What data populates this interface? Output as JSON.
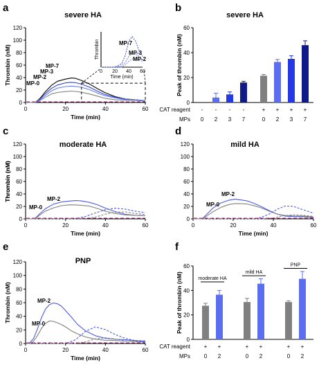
{
  "chart_data": [
    {
      "panel": "a",
      "type": "line",
      "title": "severe HA",
      "xlabel": "Time (min)",
      "ylabel": "Thrombin (nM)",
      "xlim": [
        0,
        60
      ],
      "ylim": [
        0,
        120
      ],
      "xticks": [
        "0",
        "20",
        "40",
        "60"
      ],
      "yticks": [
        "0",
        "20",
        "40",
        "60",
        "80",
        "100",
        "120"
      ],
      "curve_labels": [
        "MP-7",
        "MP-3",
        "MP-2",
        "MP-0"
      ],
      "series": [
        {
          "name": "MP-7",
          "color": "#000000",
          "style": "solid",
          "x": [
            0,
            3,
            5,
            7,
            10,
            13,
            16,
            20,
            23,
            25,
            28,
            32,
            36,
            40,
            45,
            50,
            55,
            60
          ],
          "y": [
            0,
            0,
            1,
            6,
            17,
            27,
            34,
            38,
            40,
            39,
            35,
            29,
            22,
            16,
            10,
            6,
            4,
            3
          ]
        },
        {
          "name": "MP-3",
          "color": "#2e45dc",
          "style": "solid",
          "x": [
            0,
            3,
            5,
            7,
            10,
            13,
            16,
            20,
            23,
            25,
            28,
            32,
            36,
            40,
            45,
            50,
            55,
            60
          ],
          "y": [
            0,
            0,
            1,
            5,
            14,
            22,
            28,
            32,
            33,
            32,
            29,
            24,
            18,
            13,
            9,
            6,
            4,
            3
          ]
        },
        {
          "name": "MP-2",
          "color": "#6b7fe6",
          "style": "solid",
          "x": [
            0,
            3,
            5,
            7,
            10,
            13,
            16,
            20,
            23,
            25,
            28,
            32,
            36,
            40,
            45,
            50,
            55,
            60
          ],
          "y": [
            0,
            0,
            1,
            4,
            11,
            18,
            23,
            26,
            27,
            26,
            24,
            20,
            15,
            11,
            8,
            5,
            4,
            3
          ]
        },
        {
          "name": "MP-0",
          "color": "#808080",
          "style": "solid",
          "x": [
            0,
            3,
            5,
            7,
            10,
            13,
            16,
            20,
            23,
            25,
            28,
            32,
            36,
            40,
            45,
            50,
            55,
            60
          ],
          "y": [
            0,
            0,
            1,
            3,
            8,
            13,
            16,
            18,
            19,
            18,
            16,
            13,
            10,
            7,
            5,
            4,
            3,
            2
          ]
        }
      ],
      "inset": {
        "xlabel": "Time (min)",
        "ylabel": "Thrombin",
        "xticks": [
          "0",
          "20",
          "40",
          "60"
        ],
        "curve_labels": [
          "MP-7",
          "MP-3",
          "MP-2"
        ],
        "series": [
          {
            "name": "MP-7",
            "x": [
              0,
              10,
              20,
              30,
              35,
              40,
              45,
              50,
              55,
              60
            ],
            "y": [
              0,
              0,
              0,
              3,
              10,
              22,
              26,
              22,
              14,
              9
            ]
          },
          {
            "name": "MP-3",
            "x": [
              0,
              10,
              20,
              30,
              35,
              40,
              45,
              50,
              55,
              60
            ],
            "y": [
              0,
              0,
              0,
              1,
              4,
              9,
              12,
              11,
              9,
              6
            ]
          },
          {
            "name": "MP-2",
            "x": [
              0,
              10,
              20,
              30,
              35,
              40,
              45,
              50,
              55,
              60
            ],
            "y": [
              0,
              0,
              0,
              0,
              2,
              5,
              7,
              7,
              6,
              5
            ]
          }
        ]
      }
    },
    {
      "panel": "b",
      "type": "bar",
      "title": "severe HA",
      "ylabel": "Peak of thrombin (nM)",
      "ylim": [
        0,
        60
      ],
      "yticks": [
        "0",
        "20",
        "40",
        "60"
      ],
      "row_labels": [
        "CAT reagent",
        "MPs"
      ],
      "cat_reagent": [
        "-",
        "-",
        "-",
        "-",
        "+",
        "+",
        "+",
        "+"
      ],
      "mps": [
        "0",
        "2",
        "3",
        "7",
        "0",
        "2",
        "3",
        "7"
      ],
      "values": [
        0,
        4,
        6.5,
        16,
        21.5,
        32.5,
        35,
        46
      ],
      "errors": [
        0,
        3.5,
        2,
        1,
        1,
        2,
        2.5,
        3.5
      ],
      "colors": [
        "#808080",
        "#5b6ef0",
        "#2438e6",
        "#0e1a8a",
        "#808080",
        "#5b6ef0",
        "#2438e6",
        "#0e1a8a"
      ]
    },
    {
      "panel": "c",
      "type": "line",
      "title": "moderate HA",
      "xlabel": "Time (min)",
      "ylabel": "Thrombin (nM)",
      "xlim": [
        0,
        60
      ],
      "ylim": [
        0,
        120
      ],
      "xticks": [
        "0",
        "20",
        "40",
        "60"
      ],
      "yticks": [
        "0",
        "20",
        "40",
        "60",
        "80",
        "100",
        "120"
      ],
      "curve_labels": [
        "MP-2",
        "MP-0"
      ],
      "series": [
        {
          "name": "MP-2",
          "color": "#4a5ae8",
          "style": "solid",
          "x": [
            0,
            3,
            5,
            7,
            10,
            14,
            18,
            22,
            25,
            28,
            32,
            36,
            40,
            45,
            50,
            55,
            60
          ],
          "y": [
            0,
            0,
            2,
            8,
            16,
            23,
            27,
            29,
            30,
            29,
            26,
            22,
            17,
            12,
            8,
            6,
            5
          ]
        },
        {
          "name": "MP-0",
          "color": "#808080",
          "style": "solid",
          "x": [
            0,
            3,
            5,
            7,
            10,
            14,
            18,
            22,
            25,
            28,
            32,
            36,
            40,
            45,
            50,
            55,
            60
          ],
          "y": [
            0,
            0,
            1,
            6,
            12,
            17,
            21,
            23,
            23,
            22,
            20,
            16,
            12,
            9,
            7,
            6,
            5
          ]
        },
        {
          "name": "MP-2 (dashed)",
          "color": "#4a5ae8",
          "style": "dashed",
          "x": [
            0,
            20,
            25,
            30,
            35,
            40,
            45,
            50,
            55,
            60
          ],
          "y": [
            0,
            0,
            1,
            4,
            9,
            14,
            17,
            16,
            13,
            10
          ]
        },
        {
          "name": "MP-0 (dashed)",
          "color": "#808080",
          "style": "dashed",
          "x": [
            0,
            25,
            30,
            35,
            40,
            45,
            50,
            55,
            60
          ],
          "y": [
            0,
            0,
            1,
            3,
            7,
            10,
            11,
            9,
            7
          ]
        }
      ]
    },
    {
      "panel": "d",
      "type": "line",
      "title": "mild HA",
      "xlabel": "Time (min)",
      "ylabel": "Thrombin (nM)",
      "xlim": [
        0,
        60
      ],
      "ylim": [
        0,
        120
      ],
      "xticks": [
        "0",
        "20",
        "40",
        "60"
      ],
      "yticks": [
        "0",
        "20",
        "40",
        "60",
        "80",
        "100",
        "120"
      ],
      "curve_labels": [
        "MP-2",
        "MP-0"
      ],
      "series": [
        {
          "name": "MP-2",
          "color": "#4a5ae8",
          "style": "solid",
          "x": [
            0,
            3,
            5,
            7,
            10,
            14,
            18,
            21,
            24,
            27,
            30,
            34,
            38,
            42,
            46,
            50,
            55,
            60
          ],
          "y": [
            0,
            0,
            2,
            8,
            17,
            25,
            30,
            32,
            31,
            29,
            25,
            19,
            13,
            8,
            5,
            4,
            3,
            2
          ]
        },
        {
          "name": "MP-0",
          "color": "#808080",
          "style": "solid",
          "x": [
            0,
            3,
            5,
            7,
            10,
            14,
            18,
            21,
            24,
            27,
            30,
            34,
            38,
            42,
            46,
            50,
            55,
            60
          ],
          "y": [
            0,
            0,
            1,
            5,
            11,
            18,
            23,
            25,
            25,
            24,
            21,
            17,
            12,
            8,
            6,
            5,
            4,
            3
          ]
        },
        {
          "name": "MP-2 (dashed)",
          "color": "#4a5ae8",
          "style": "dashed",
          "x": [
            0,
            30,
            34,
            38,
            42,
            46,
            50,
            54,
            58,
            60
          ],
          "y": [
            0,
            0,
            3,
            8,
            15,
            20,
            20,
            16,
            12,
            9
          ]
        },
        {
          "name": "MP-0 (dashed)",
          "color": "#808080",
          "style": "dashed",
          "x": [
            0,
            35,
            40,
            45,
            50,
            55,
            60
          ],
          "y": [
            0,
            0,
            2,
            5,
            6,
            5,
            4
          ]
        }
      ]
    },
    {
      "panel": "e",
      "type": "line",
      "title": "PNP",
      "xlabel": "Time (min)",
      "ylabel": "Thrombin (nM)",
      "xlim": [
        0,
        60
      ],
      "ylim": [
        0,
        120
      ],
      "xticks": [
        "0",
        "20",
        "40",
        "60"
      ],
      "yticks": [
        "0",
        "20",
        "40",
        "60",
        "80",
        "100",
        "120"
      ],
      "curve_labels": [
        "MP-2",
        "MP-0"
      ],
      "series": [
        {
          "name": "MP-2",
          "color": "#4a5ae8",
          "style": "solid",
          "x": [
            0,
            2,
            4,
            6,
            8,
            10,
            12,
            14,
            16,
            18,
            20,
            23,
            26,
            30,
            35,
            40,
            45,
            50,
            55,
            60
          ],
          "y": [
            0,
            1,
            8,
            22,
            38,
            50,
            57,
            60,
            59,
            55,
            48,
            38,
            28,
            19,
            12,
            8,
            6,
            5,
            4,
            3
          ]
        },
        {
          "name": "MP-0",
          "color": "#808080",
          "style": "solid",
          "x": [
            0,
            2,
            4,
            6,
            8,
            10,
            12,
            14,
            16,
            18,
            20,
            23,
            26,
            30,
            35,
            40,
            45,
            50,
            55,
            60
          ],
          "y": [
            0,
            0,
            4,
            12,
            22,
            29,
            33,
            33,
            31,
            28,
            24,
            18,
            14,
            10,
            7,
            5,
            4,
            3,
            3,
            2
          ]
        },
        {
          "name": "MP-2 (dashed)",
          "color": "#4a5ae8",
          "style": "dashed",
          "x": [
            0,
            20,
            25,
            30,
            35,
            40,
            45,
            50,
            55,
            60
          ],
          "y": [
            0,
            0,
            6,
            18,
            24,
            20,
            13,
            8,
            5,
            4
          ]
        },
        {
          "name": "MP-0 (dashed)",
          "color": "#808080",
          "style": "dashed",
          "x": [
            0,
            25,
            30,
            35,
            40,
            45,
            50,
            55,
            60
          ],
          "y": [
            0,
            0,
            3,
            7,
            8,
            6,
            4,
            3,
            2
          ]
        }
      ]
    },
    {
      "panel": "f",
      "type": "bar",
      "ylabel": "Peak of thrombin (nM)",
      "ylim": [
        0,
        60
      ],
      "yticks": [
        "0",
        "20",
        "40",
        "60"
      ],
      "group_labels": [
        "moderate HA",
        "mild HA",
        "PNP"
      ],
      "row_labels": [
        "CAT reagent",
        "MPs"
      ],
      "cat_reagent": [
        "+",
        "+",
        "+",
        "+",
        "+",
        "+"
      ],
      "mps": [
        "0",
        "2",
        "0",
        "2",
        "0",
        "2"
      ],
      "values": [
        27.5,
        36.5,
        30.5,
        45.5,
        30.5,
        49.5
      ],
      "errors": [
        2,
        3.5,
        3,
        4,
        1,
        6
      ],
      "colors": [
        "#808080",
        "#5b6ef0",
        "#808080",
        "#5b6ef0",
        "#808080",
        "#5b6ef0"
      ]
    }
  ]
}
